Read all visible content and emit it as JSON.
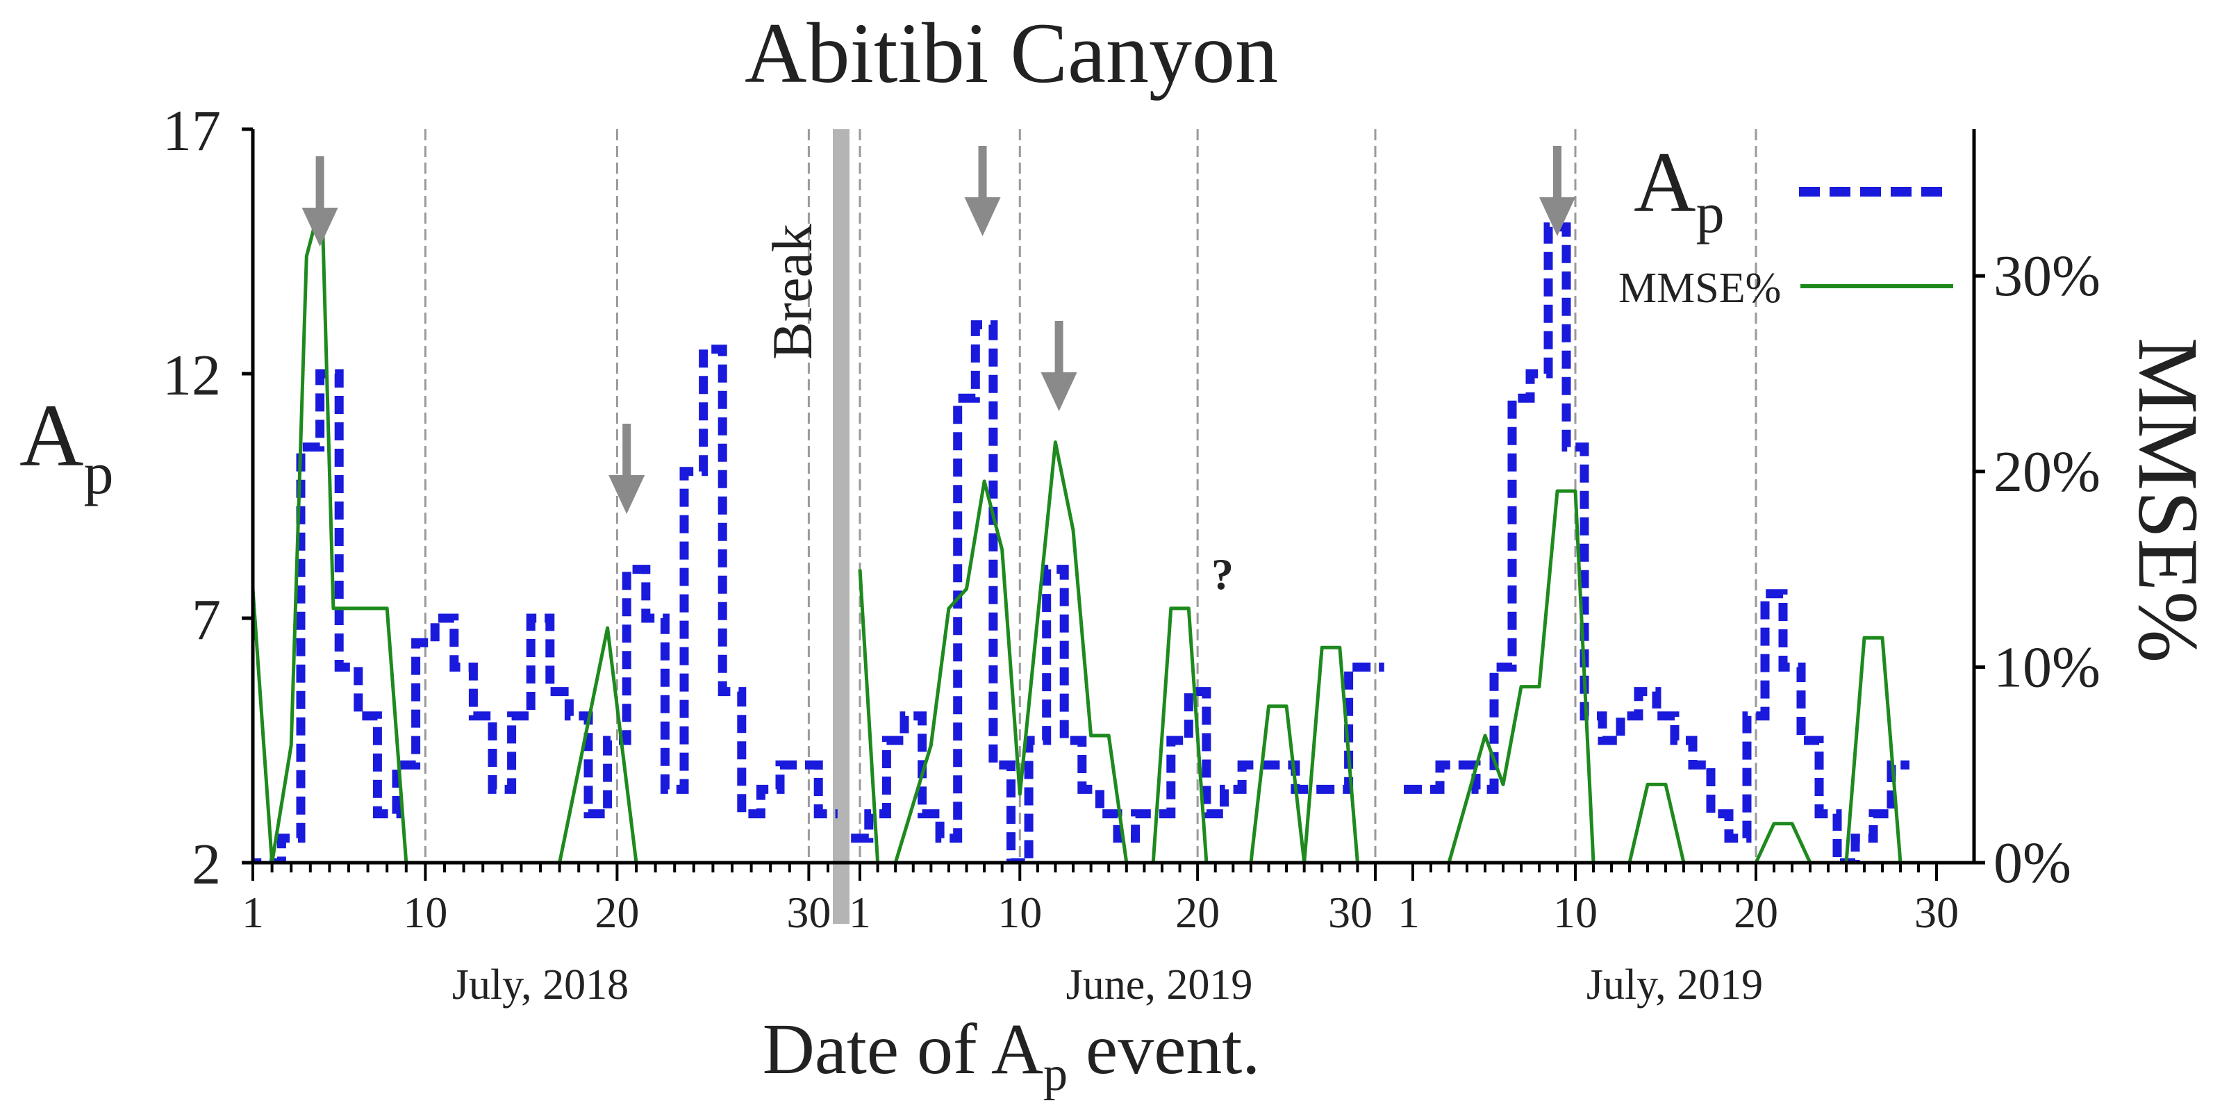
{
  "chart_data": {
    "type": "line",
    "title": "Abitibi Canyon",
    "xlabel_prefix": "Date of A",
    "xlabel_sub": "p",
    "xlabel_suffix": " event.",
    "ylabel_main": "A",
    "ylabel_sub": "p",
    "ylabel_right": "MMSE%",
    "left_axis": {
      "ylim": [
        2,
        17
      ],
      "ticks": [
        "2",
        "7",
        "12",
        "17"
      ]
    },
    "right_axis": {
      "ylim": [
        0,
        37.5
      ],
      "ticks": [
        "0%",
        "10%",
        "20%",
        "30%"
      ],
      "tick_values": [
        0,
        10,
        20,
        30
      ]
    },
    "break_label": "Break",
    "question_mark": "?",
    "panels": [
      {
        "month": "July, 2018",
        "days": 31,
        "ticks": [
          "1",
          "10",
          "20",
          "30"
        ]
      },
      {
        "month": "June, 2019",
        "days": 30,
        "ticks": [
          "1",
          "10",
          "20",
          "30"
        ]
      },
      {
        "month": "July, 2019",
        "days": 30,
        "ticks": [
          "1",
          "10",
          "20",
          "30"
        ]
      }
    ],
    "legend": [
      {
        "name": "A",
        "sub": "p",
        "style": "dashed",
        "color": "#1a1adc"
      },
      {
        "name": "MMSE%",
        "style": "solid",
        "color": "#1e8a1e"
      }
    ],
    "series": [
      {
        "name": "Ap",
        "color": "#1a1adc",
        "style": "step-dashed",
        "points": [
          [
            0,
            1,
            2
          ],
          [
            0,
            2,
            2
          ],
          [
            0,
            3,
            2.5
          ],
          [
            0,
            4,
            10.5
          ],
          [
            0,
            5,
            12
          ],
          [
            0,
            6,
            6
          ],
          [
            0,
            7,
            5
          ],
          [
            0,
            8,
            3
          ],
          [
            0,
            9,
            4
          ],
          [
            0,
            10,
            6.5
          ],
          [
            0,
            11,
            7
          ],
          [
            0,
            12,
            6
          ],
          [
            0,
            13,
            5
          ],
          [
            0,
            14,
            3.5
          ],
          [
            0,
            15,
            5
          ],
          [
            0,
            16,
            7
          ],
          [
            0,
            17,
            5.5
          ],
          [
            0,
            18,
            5
          ],
          [
            0,
            19,
            3
          ],
          [
            0,
            20,
            4.5
          ],
          [
            0,
            21,
            8
          ],
          [
            0,
            22,
            7
          ],
          [
            0,
            23,
            3.5
          ],
          [
            0,
            24,
            10
          ],
          [
            0,
            25,
            12.5
          ],
          [
            0,
            26,
            5.5
          ],
          [
            0,
            27,
            3
          ],
          [
            0,
            28,
            3.5
          ],
          [
            0,
            29,
            4
          ],
          [
            0,
            30,
            4
          ],
          [
            0,
            31,
            3
          ],
          [
            1,
            1,
            2.5
          ],
          [
            1,
            2,
            3
          ],
          [
            1,
            3,
            4.5
          ],
          [
            1,
            4,
            5
          ],
          [
            1,
            5,
            3
          ],
          [
            1,
            6,
            2.5
          ],
          [
            1,
            7,
            11.5
          ],
          [
            1,
            8,
            13
          ],
          [
            1,
            9,
            4
          ],
          [
            1,
            10,
            2
          ],
          [
            1,
            11,
            4.5
          ],
          [
            1,
            12,
            8
          ],
          [
            1,
            13,
            4.5
          ],
          [
            1,
            14,
            3.5
          ],
          [
            1,
            15,
            3
          ],
          [
            1,
            16,
            2.5
          ],
          [
            1,
            17,
            3
          ],
          [
            1,
            18,
            3
          ],
          [
            1,
            19,
            4.5
          ],
          [
            1,
            20,
            5.5
          ],
          [
            1,
            21,
            3
          ],
          [
            1,
            22,
            3.5
          ],
          [
            1,
            23,
            4
          ],
          [
            1,
            24,
            4
          ],
          [
            1,
            25,
            4
          ],
          [
            1,
            26,
            3.5
          ],
          [
            1,
            27,
            3.5
          ],
          [
            1,
            28,
            3.5
          ],
          [
            1,
            29,
            6
          ],
          [
            1,
            30,
            6
          ],
          [
            2,
            1,
            3.5
          ],
          [
            2,
            2,
            3.5
          ],
          [
            2,
            3,
            4
          ],
          [
            2,
            4,
            4
          ],
          [
            2,
            5,
            3.5
          ],
          [
            2,
            6,
            6
          ],
          [
            2,
            7,
            11.5
          ],
          [
            2,
            8,
            12
          ],
          [
            2,
            9,
            15
          ],
          [
            2,
            10,
            10.5
          ],
          [
            2,
            11,
            5
          ],
          [
            2,
            12,
            4.5
          ],
          [
            2,
            13,
            5
          ],
          [
            2,
            14,
            5.5
          ],
          [
            2,
            15,
            5
          ],
          [
            2,
            16,
            4.5
          ],
          [
            2,
            17,
            4
          ],
          [
            2,
            18,
            3
          ],
          [
            2,
            19,
            2.5
          ],
          [
            2,
            20,
            5
          ],
          [
            2,
            21,
            7.5
          ],
          [
            2,
            22,
            6
          ],
          [
            2,
            23,
            4.5
          ],
          [
            2,
            24,
            3
          ],
          [
            2,
            25,
            2
          ],
          [
            2,
            26,
            2.5
          ],
          [
            2,
            27,
            3
          ],
          [
            2,
            28,
            4
          ]
        ]
      },
      {
        "name": "MMSE%",
        "color": "#1e8a1e",
        "style": "solid",
        "segments": [
          [
            [
              0,
              1,
              14
            ],
            [
              0,
              2,
              0
            ],
            [
              0,
              3,
              6
            ],
            [
              0,
              3.8,
              31
            ],
            [
              0,
              4.6,
              34
            ],
            [
              0,
              5.2,
              13
            ],
            [
              0,
              6,
              13
            ],
            [
              0,
              7,
              13
            ],
            [
              0,
              8,
              13
            ],
            [
              0,
              9,
              0
            ],
            [
              0,
              17,
              0
            ],
            [
              0,
              19.5,
              12
            ],
            [
              0,
              21,
              0
            ],
            [
              0,
              28,
              0
            ]
          ],
          [
            [
              1,
              1,
              15
            ],
            [
              1,
              2,
              0
            ],
            [
              1,
              3,
              0
            ],
            [
              1,
              5,
              6
            ],
            [
              1,
              6,
              13
            ],
            [
              1,
              7,
              14
            ],
            [
              1,
              8,
              19.5
            ],
            [
              1,
              9,
              16
            ],
            [
              1,
              10,
              3.5
            ],
            [
              1,
              12,
              21.5
            ],
            [
              1,
              13,
              17
            ],
            [
              1,
              14,
              6.5
            ],
            [
              1,
              15,
              6.5
            ],
            [
              1,
              16,
              0
            ],
            [
              1,
              17.5,
              0
            ],
            [
              1,
              18.5,
              13
            ],
            [
              1,
              19.5,
              13
            ],
            [
              1,
              20.5,
              0
            ]
          ],
          [
            [
              1,
              23,
              0
            ],
            [
              1,
              24,
              8
            ],
            [
              1,
              25,
              8
            ],
            [
              1,
              26,
              0
            ],
            [
              1,
              27,
              11
            ],
            [
              1,
              28,
              11
            ],
            [
              1,
              29,
              0
            ]
          ],
          [
            [
              2,
              1,
              0
            ],
            [
              2,
              3,
              0
            ],
            [
              2,
              5,
              6.5
            ],
            [
              2,
              6,
              4
            ],
            [
              2,
              7,
              9
            ],
            [
              2,
              8,
              9
            ],
            [
              2,
              9,
              19
            ],
            [
              2,
              10,
              19
            ],
            [
              2,
              11,
              0
            ],
            [
              2,
              13,
              0
            ],
            [
              2,
              14,
              4
            ],
            [
              2,
              15,
              4
            ],
            [
              2,
              16,
              0
            ]
          ],
          [
            [
              2,
              20,
              0
            ],
            [
              2,
              21,
              2
            ],
            [
              2,
              22,
              2
            ],
            [
              2,
              23,
              0
            ],
            [
              2,
              25,
              0
            ],
            [
              2,
              26,
              11.5
            ],
            [
              2,
              27,
              11.5
            ],
            [
              2,
              28,
              0
            ]
          ]
        ]
      }
    ],
    "arrows": [
      [
        0,
        4.5
      ],
      [
        0,
        20.5
      ],
      [
        1,
        7.9
      ],
      [
        1,
        12.2
      ],
      [
        2,
        9
      ]
    ]
  }
}
